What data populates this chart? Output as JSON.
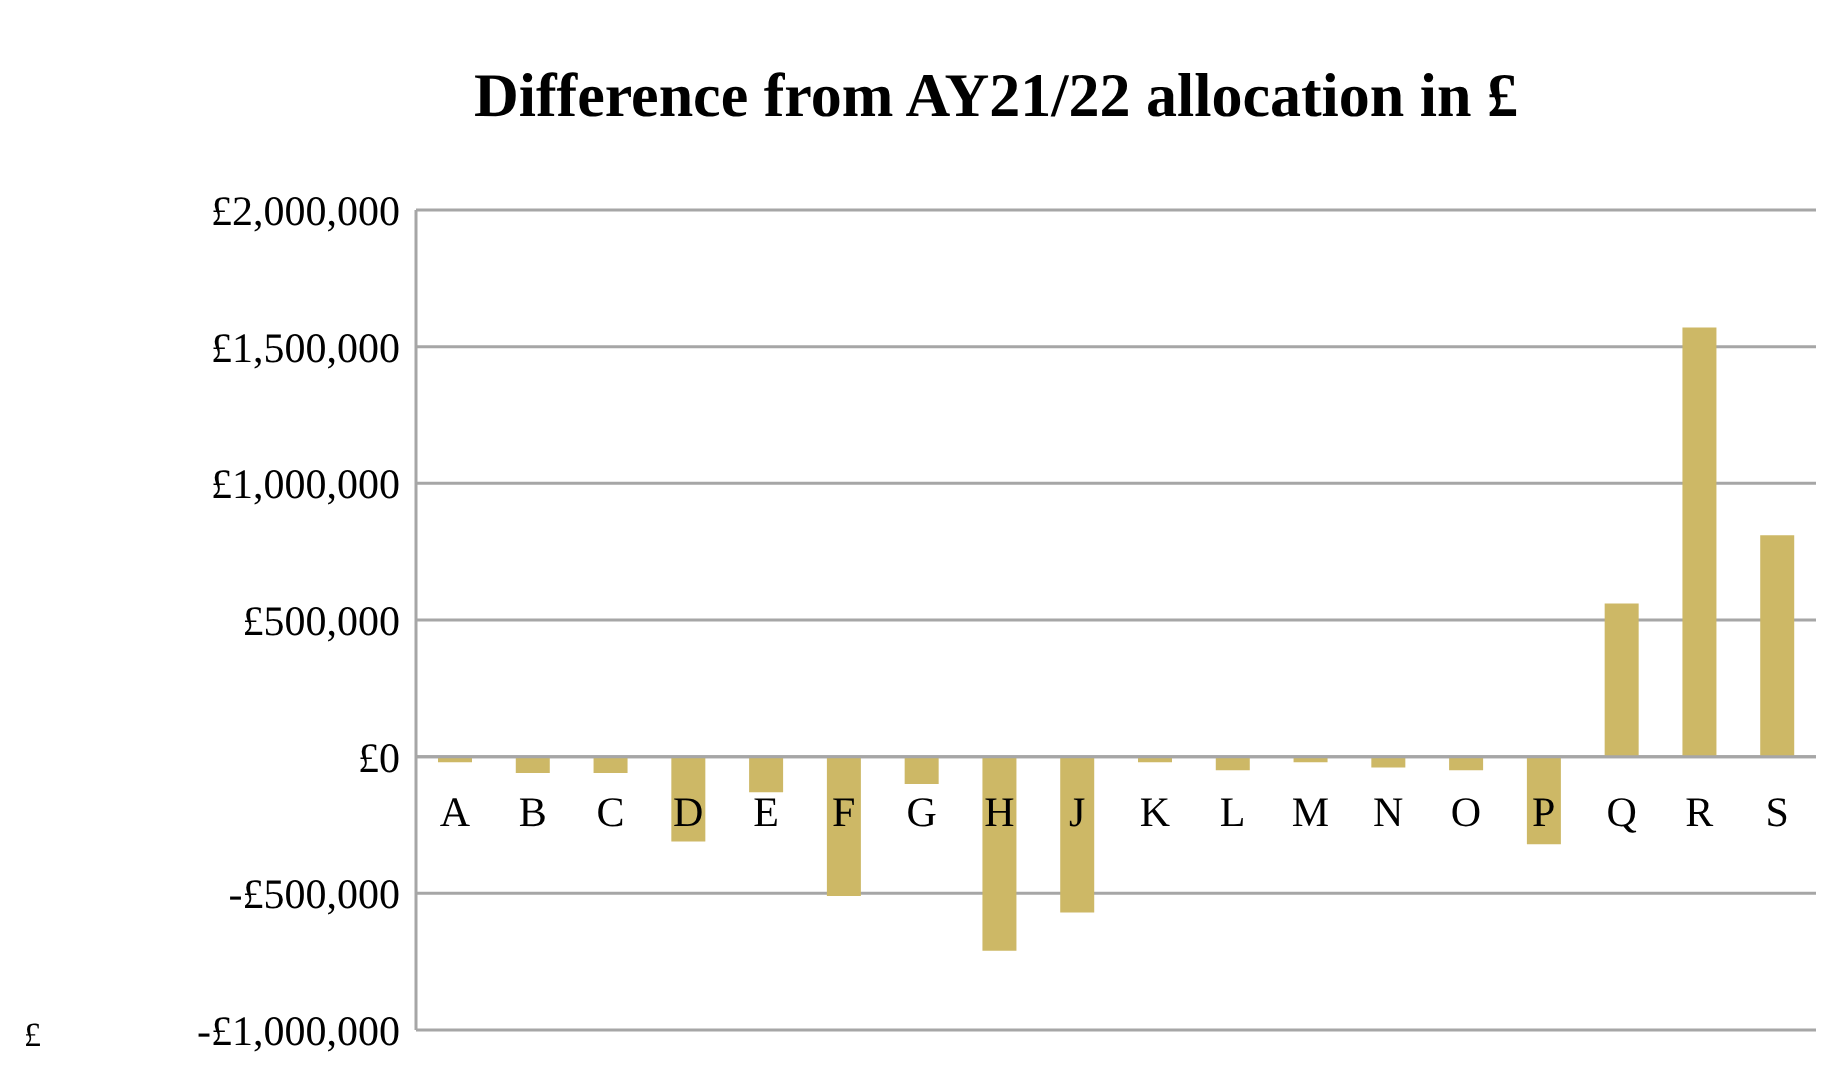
{
  "chart_data": {
    "type": "bar",
    "title": "Difference from AY21/22 allocation in £",
    "categories": [
      "A",
      "B",
      "C",
      "D",
      "E",
      "F",
      "G",
      "H",
      "J",
      "K",
      "L",
      "M",
      "N",
      "O",
      "P",
      "Q",
      "R",
      "S"
    ],
    "values": [
      -20000,
      -60000,
      -60000,
      -310000,
      -130000,
      -510000,
      -100000,
      -710000,
      -570000,
      -20000,
      -50000,
      -20000,
      -40000,
      -50000,
      -320000,
      560000,
      1570000,
      810000
    ],
    "color": "#cdb866",
    "ylim": [
      -1000000,
      2000000
    ],
    "yticks": [
      {
        "value": -1000000,
        "label": "-£1,000,000"
      },
      {
        "value": -500000,
        "label": "-£500,000"
      },
      {
        "value": 0,
        "label": "£0"
      },
      {
        "value": 500000,
        "label": "£500,000"
      },
      {
        "value": 1000000,
        "label": "£1,000,000"
      },
      {
        "value": 1500000,
        "label": "£1,500,000"
      },
      {
        "value": 2000000,
        "label": "£2,000,000"
      }
    ],
    "grid": "y",
    "annotations": [
      "£"
    ]
  }
}
